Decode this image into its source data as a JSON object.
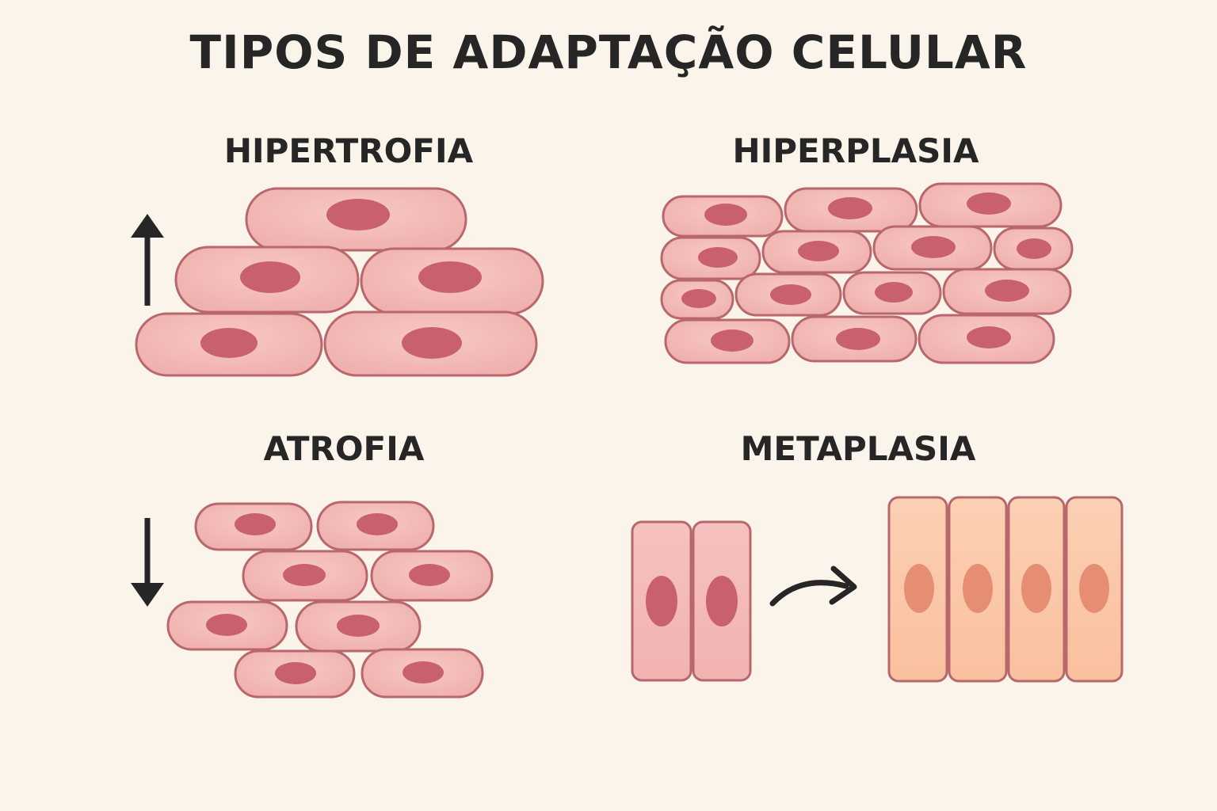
{
  "title": "TIPOS DE ADAPTAÇÃO CELULAR",
  "sections": {
    "hipertrofia": {
      "label": "HIPERTROFIA"
    },
    "hiperplasia": {
      "label": "HIPERPLASIA"
    },
    "atrofia": {
      "label": "ATROFIA"
    },
    "metaplasia": {
      "label": "METAPLASIA"
    }
  },
  "colors": {
    "background": "#fbf4ea",
    "cell_fill": "#f2b8b6",
    "cell_stroke": "#b8676d",
    "nucleus": "#c9606e",
    "columnar_fill": "#fbc9a9",
    "columnar_nucleus": "#e58e74",
    "arrow": "#262626",
    "text": "#262626"
  },
  "icons": [
    "arrow-up-icon",
    "arrow-down-icon",
    "curved-arrow-right-icon"
  ]
}
